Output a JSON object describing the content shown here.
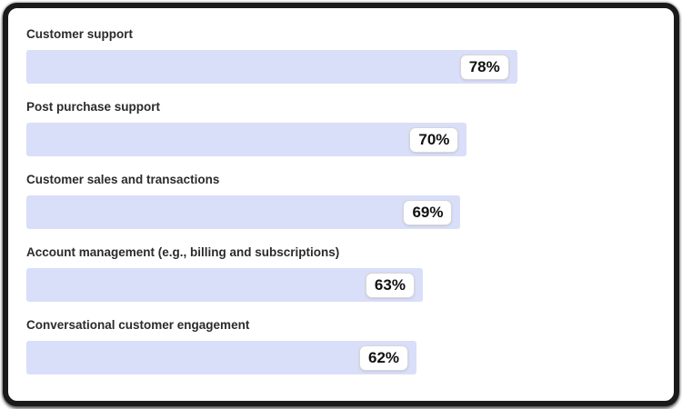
{
  "chart_data": {
    "type": "bar",
    "orientation": "horizontal",
    "title": "",
    "xlabel": "",
    "ylabel": "",
    "xlim": [
      0,
      100
    ],
    "grid": false,
    "legend": false,
    "value_label_position": "inside-end",
    "categories": [
      "Customer support",
      "Post purchase support",
      "Customer sales and transactions",
      "Account management (e.g., billing and subscriptions)",
      "Conversational customer engagement"
    ],
    "values": [
      78,
      70,
      69,
      63,
      62
    ],
    "value_labels": [
      "78%",
      "70%",
      "69%",
      "63%",
      "62%"
    ]
  },
  "colors": {
    "bar_fill": "#d9def9",
    "badge_background": "#ffffff",
    "badge_border": "#d6d6d6",
    "badge_text": "#111111",
    "label_text": "#2b2b2b",
    "card_background": "#ffffff",
    "frame_border": "#1a1a1a"
  }
}
